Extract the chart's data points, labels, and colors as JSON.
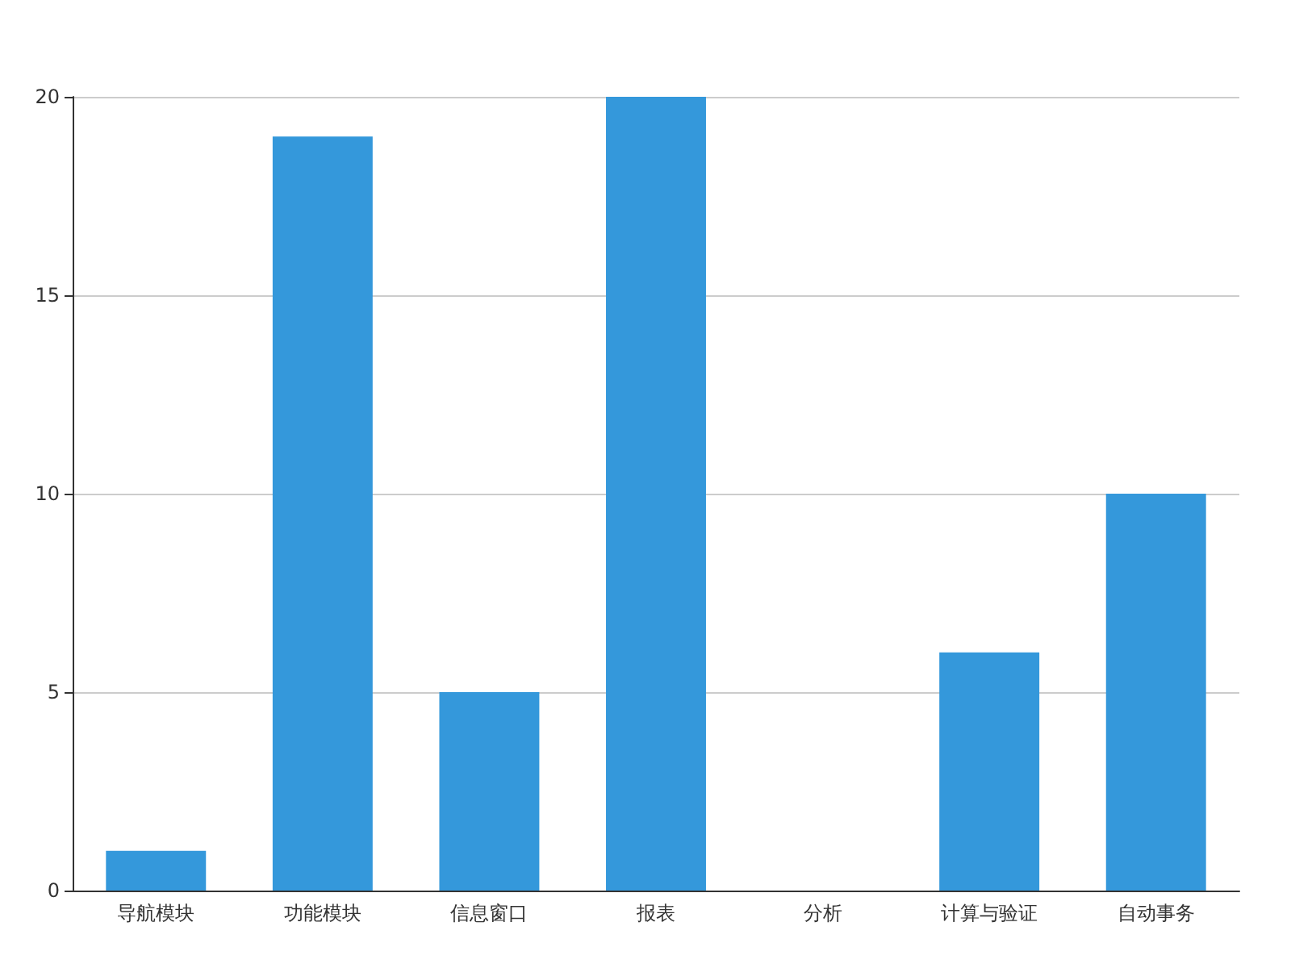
{
  "chart_data": {
    "type": "bar",
    "categories": [
      "导航模块",
      "功能模块",
      "信息窗口",
      "报表",
      "分析",
      "计算与验证",
      "自动事务"
    ],
    "values": [
      1,
      19,
      5,
      20,
      0,
      6,
      10
    ],
    "color": "#3498db",
    "ylim": [
      0,
      20
    ],
    "yticks": [
      0,
      5,
      10,
      15,
      20
    ],
    "grid": "y"
  }
}
